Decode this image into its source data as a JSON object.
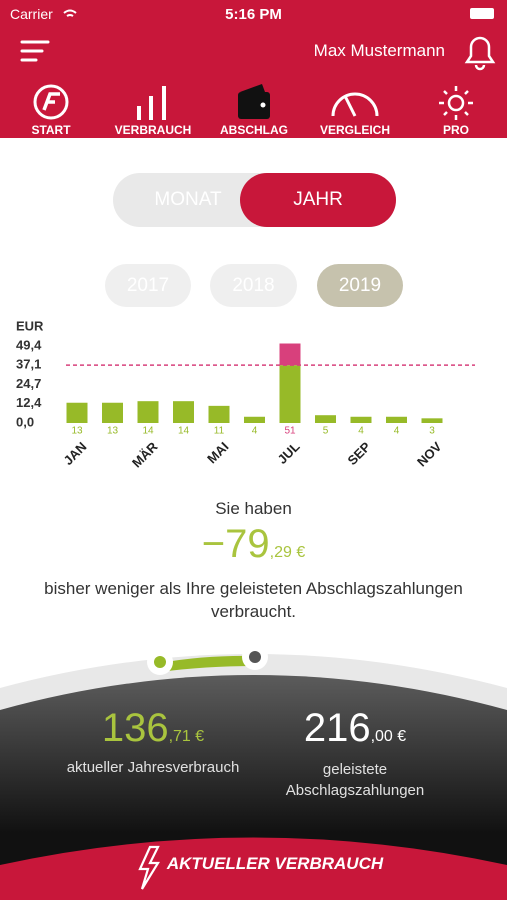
{
  "status_bar": {
    "carrier": "Carrier",
    "time": "5:16 PM"
  },
  "header": {
    "user": "Max Mustermann"
  },
  "nav": [
    "START",
    "VERBRAUCH",
    "ABSCHLAG",
    "VERGLEICH",
    "PRO"
  ],
  "toggle": [
    "MONAT",
    "JAHR"
  ],
  "years": [
    "2017",
    "2018",
    "2019"
  ],
  "chart_data": {
    "type": "bar",
    "y_label": "EUR",
    "categories": [
      "JAN",
      null,
      "MÄR",
      null,
      "MAI",
      null,
      "JUL",
      null,
      "SEP",
      null,
      "NOV"
    ],
    "values": [
      13,
      13,
      14,
      14,
      11,
      4,
      51,
      5,
      4,
      4,
      3
    ],
    "color": "#97ba28",
    "over_color": "#d8407c",
    "reference": {
      "value": 37.1,
      "color": "#d8407c"
    },
    "ylim": [
      0,
      49.4
    ],
    "yticks": [
      {
        "value": 0,
        "label": "0,0"
      },
      {
        "value": 12.4,
        "label": "12,4"
      },
      {
        "value": 24.7,
        "label": "24,7"
      },
      {
        "value": 37.1,
        "label": "37,1"
      },
      {
        "value": 49.4,
        "label": "49,4"
      }
    ],
    "grid": false
  },
  "summary": {
    "intro": "Sie haben",
    "amount": "−79",
    "amount_decimals": ",29 €",
    "text": "bisher weniger als Ihre geleisteten Abschlagszahlungen verbraucht."
  },
  "gauge": {
    "consumption": "136",
    "consumption_decimals": ",71 €",
    "consumption_label": "aktueller Jahresverbrauch",
    "payments": "216",
    "payments_decimals": ",00 €",
    "payments_label": "geleistete Abschlagszahlungen"
  },
  "footer": {
    "button": "AKTUELLER VERBRAUCH"
  }
}
